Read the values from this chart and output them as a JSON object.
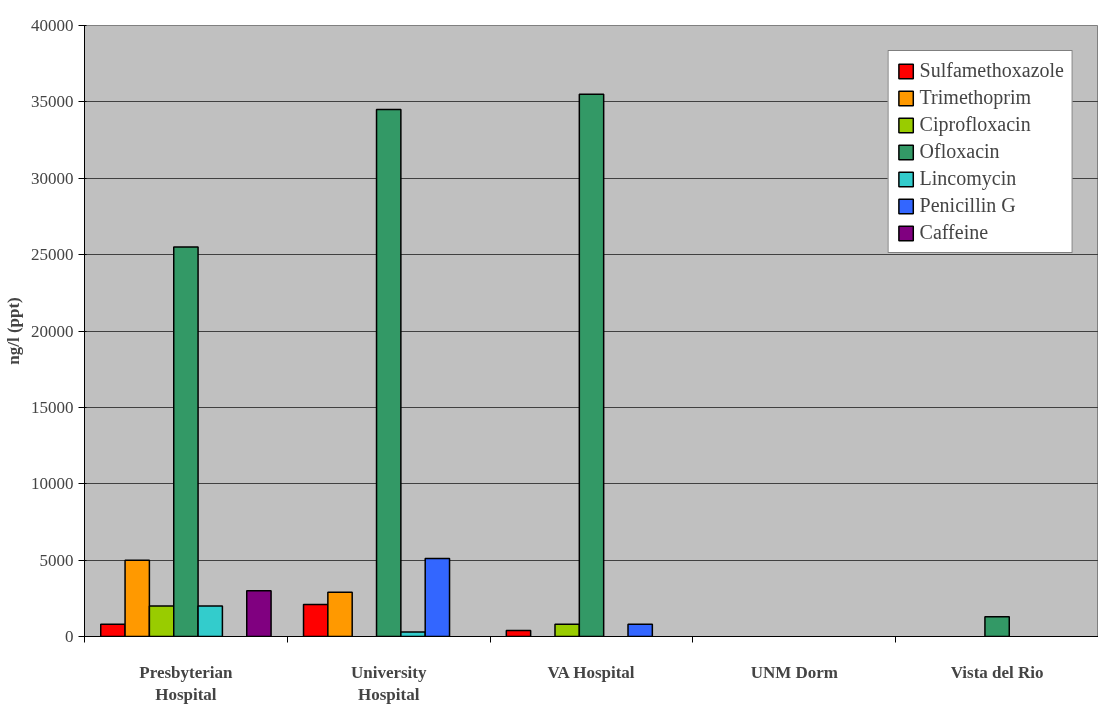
{
  "chart_data": {
    "type": "bar",
    "ylabel": "ng/l (ppt)",
    "categories": [
      "Presbyterian Hospital",
      "University Hospital",
      "VA Hospital",
      "UNM Dorm",
      "Vista del Rio"
    ],
    "series": [
      {
        "name": "Sulfamethoxazole",
        "color": "#ff0000",
        "values": [
          800,
          2100,
          400,
          null,
          null
        ]
      },
      {
        "name": "Trimethoprim",
        "color": "#ff9900",
        "values": [
          5000,
          2900,
          null,
          null,
          null
        ]
      },
      {
        "name": "Ciprofloxacin",
        "color": "#99cc00",
        "values": [
          2000,
          null,
          800,
          null,
          null
        ]
      },
      {
        "name": "Ofloxacin",
        "color": "#339966",
        "values": [
          25500,
          34500,
          35500,
          null,
          1300
        ]
      },
      {
        "name": "Lincomycin",
        "color": "#33cccc",
        "values": [
          2000,
          300,
          null,
          null,
          null
        ]
      },
      {
        "name": "Penicillin G",
        "color": "#3366ff",
        "values": [
          null,
          5100,
          800,
          null,
          null
        ]
      },
      {
        "name": "Caffeine",
        "color": "#800080",
        "values": [
          3000,
          null,
          null,
          null,
          null
        ]
      }
    ],
    "ylim": [
      0,
      40000
    ],
    "yticks": [
      0,
      5000,
      10000,
      15000,
      20000,
      25000,
      30000,
      35000,
      40000
    ],
    "grid": "y",
    "legend": "top right"
  }
}
